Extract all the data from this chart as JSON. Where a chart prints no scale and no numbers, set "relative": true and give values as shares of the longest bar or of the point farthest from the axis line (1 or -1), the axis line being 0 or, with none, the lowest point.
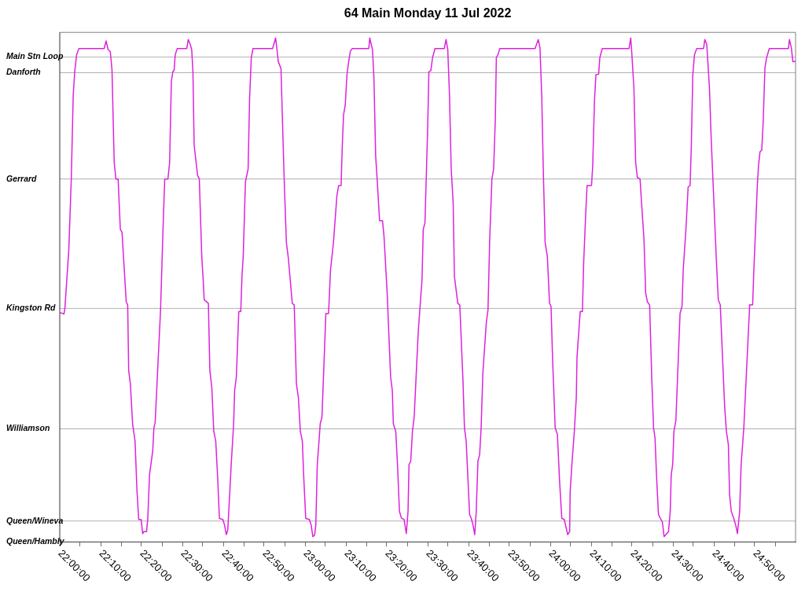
{
  "chart_data": {
    "type": "line",
    "title": "64 Main Monday 11 Jul 2022",
    "relative": true,
    "x": [
      22.0,
      22.017,
      22.021,
      22.037,
      22.047,
      22.055,
      22.061,
      22.069,
      22.078,
      22.181,
      22.189,
      22.197,
      22.206,
      22.213,
      22.222,
      22.229,
      22.238,
      22.247,
      22.254,
      22.271,
      22.277,
      22.281,
      22.288,
      22.297,
      22.307,
      22.315,
      22.322,
      22.332,
      22.338,
      22.343,
      22.354,
      22.359,
      22.366,
      22.379,
      22.384,
      22.389,
      22.411,
      22.421,
      22.428,
      22.441,
      22.448,
      22.455,
      22.461,
      22.466,
      22.471,
      22.479,
      22.518,
      22.524,
      22.532,
      22.538,
      22.543,
      22.548,
      22.562,
      22.569,
      22.579,
      22.584,
      22.589,
      22.606,
      22.612,
      22.62,
      22.628,
      22.636,
      22.644,
      22.651,
      22.665,
      22.672,
      22.679,
      22.685,
      22.692,
      22.699,
      22.709,
      22.713,
      22.72,
      22.73,
      22.738,
      22.743,
      22.748,
      22.757,
      22.768,
      22.774,
      22.781,
      22.788,
      22.868,
      22.88,
      22.885,
      22.891,
      22.902,
      22.915,
      22.924,
      22.932,
      22.948,
      22.956,
      22.965,
      22.973,
      22.981,
      22.989,
      22.995,
      23.003,
      23.018,
      23.025,
      23.032,
      23.039,
      23.044,
      23.05,
      23.055,
      23.062,
      23.069,
      23.085,
      23.096,
      23.104,
      23.116,
      23.13,
      23.137,
      23.147,
      23.152,
      23.157,
      23.164,
      23.171,
      23.178,
      23.185,
      23.193,
      23.26,
      23.264,
      23.27,
      23.275,
      23.281,
      23.288,
      23.294,
      23.304,
      23.316,
      23.322,
      23.335,
      23.349,
      23.356,
      23.36,
      23.37,
      23.377,
      23.385,
      23.393,
      23.404,
      23.413,
      23.42,
      23.424,
      23.431,
      23.438,
      23.445,
      23.462,
      23.47,
      23.477,
      23.482,
      23.489,
      23.5,
      23.505,
      23.513,
      23.52,
      23.53,
      23.568,
      23.575,
      23.582,
      23.589,
      23.596,
      23.604,
      23.609,
      23.623,
      23.631,
      23.644,
      23.65,
      23.657,
      23.671,
      23.678,
      23.685,
      23.692,
      23.698,
      23.705,
      23.712,
      23.718,
      23.725,
      23.739,
      23.746,
      23.753,
      23.762,
      23.769,
      23.776,
      23.78,
      23.787,
      23.794,
      23.938,
      23.951,
      23.958,
      23.965,
      23.972,
      23.979,
      23.988,
      23.997,
      24.003,
      24.01,
      24.02,
      24.029,
      24.038,
      24.047,
      24.057,
      24.071,
      24.079,
      24.081,
      24.088,
      24.098,
      24.106,
      24.109,
      24.122,
      24.131,
      24.136,
      24.144,
      24.15,
      24.168,
      24.173,
      24.18,
      24.186,
      24.197,
      24.202,
      24.212,
      24.321,
      24.328,
      24.331,
      24.341,
      24.348,
      24.355,
      24.366,
      24.372,
      24.382,
      24.389,
      24.396,
      24.405,
      24.414,
      24.421,
      24.427,
      24.433,
      24.441,
      24.448,
      24.457,
      24.464,
      24.482,
      24.489,
      24.493,
      24.499,
      24.504,
      24.512,
      24.529,
      24.537,
      24.542,
      24.553,
      24.562,
      24.57,
      24.575,
      24.581,
      24.588,
      24.597,
      24.625,
      24.63,
      24.638,
      24.644,
      24.649,
      24.656,
      24.663,
      24.677,
      24.685,
      24.693,
      24.711,
      24.718,
      24.726,
      24.731,
      24.738,
      24.748,
      24.756,
      24.763,
      24.772,
      24.778,
      24.783,
      24.789,
      24.813,
      24.825,
      24.83,
      24.838,
      24.844,
      24.849,
      24.855,
      24.862,
      24.868,
      24.875,
      24.882,
      24.893,
      24.971,
      24.975,
      24.983,
      24.989,
      25.0
    ],
    "values": [
      0.455,
      0.452,
      0.463,
      0.58,
      0.72,
      0.887,
      0.933,
      0.967,
      0.979,
      0.979,
      0.994,
      0.977,
      0.973,
      0.937,
      0.753,
      0.72,
      0.72,
      0.62,
      0.614,
      0.476,
      0.47,
      0.34,
      0.313,
      0.234,
      0.2,
      0.1,
      0.044,
      0.044,
      0.016,
      0.02,
      0.02,
      0.047,
      0.133,
      0.18,
      0.226,
      0.237,
      0.46,
      0.62,
      0.72,
      0.72,
      0.753,
      0.913,
      0.933,
      0.935,
      0.967,
      0.979,
      0.979,
      0.997,
      0.987,
      0.977,
      0.933,
      0.787,
      0.727,
      0.72,
      0.566,
      0.527,
      0.48,
      0.473,
      0.34,
      0.306,
      0.219,
      0.2,
      0.126,
      0.046,
      0.044,
      0.033,
      0.014,
      0.023,
      0.086,
      0.153,
      0.234,
      0.3,
      0.327,
      0.457,
      0.457,
      0.527,
      0.566,
      0.714,
      0.74,
      0.88,
      0.961,
      0.979,
      0.979,
      1,
      0.98,
      0.953,
      0.939,
      0.72,
      0.594,
      0.563,
      0.473,
      0.47,
      0.313,
      0.286,
      0.219,
      0.2,
      0.126,
      0.046,
      0.044,
      0.033,
      0.01,
      0.013,
      0.033,
      0.153,
      0.186,
      0.234,
      0.247,
      0.453,
      0.453,
      0.54,
      0.594,
      0.687,
      0.707,
      0.707,
      0.787,
      0.847,
      0.867,
      0.927,
      0.953,
      0.974,
      0.979,
      0.979,
      1,
      0.987,
      0.977,
      0.92,
      0.766,
      0.72,
      0.637,
      0.637,
      0.607,
      0.493,
      0.327,
      0.3,
      0.234,
      0.219,
      0.153,
      0.06,
      0.047,
      0.044,
      0.016,
      0.06,
      0.153,
      0.16,
      0.219,
      0.247,
      0.42,
      0.473,
      0.52,
      0.62,
      0.633,
      0.82,
      0.933,
      0.935,
      0.961,
      0.979,
      0.979,
      0.997,
      0.977,
      0.887,
      0.74,
      0.673,
      0.527,
      0.473,
      0.47,
      0.32,
      0.226,
      0.2,
      0.054,
      0.046,
      0.033,
      0.014,
      0.06,
      0.16,
      0.173,
      0.226,
      0.334,
      0.434,
      0.46,
      0.6,
      0.72,
      0.74,
      0.84,
      0.961,
      0.967,
      0.979,
      0.979,
      0.997,
      0.98,
      0.887,
      0.727,
      0.594,
      0.566,
      0.473,
      0.467,
      0.353,
      0.226,
      0.213,
      0.119,
      0.046,
      0.044,
      0.014,
      0.02,
      0.1,
      0.153,
      0.219,
      0.286,
      0.367,
      0.457,
      0.457,
      0.553,
      0.647,
      0.707,
      0.707,
      0.747,
      0.874,
      0.927,
      0.928,
      0.961,
      0.979,
      0.979,
      1,
      0.98,
      0.9,
      0.753,
      0.723,
      0.72,
      0.673,
      0.6,
      0.493,
      0.476,
      0.47,
      0.32,
      0.226,
      0.206,
      0.133,
      0.054,
      0.047,
      0.039,
      0.01,
      0.02,
      0.06,
      0.133,
      0.153,
      0.219,
      0.24,
      0.453,
      0.467,
      0.54,
      0.62,
      0.704,
      0.707,
      0.787,
      0.927,
      0.967,
      0.979,
      0.979,
      0.997,
      0.987,
      0.94,
      0.9,
      0.8,
      0.72,
      0.56,
      0.48,
      0.47,
      0.267,
      0.219,
      0.193,
      0.093,
      0.06,
      0.046,
      0.033,
      0.016,
      0.06,
      0.153,
      0.186,
      0.226,
      0.47,
      0.47,
      0.54,
      0.633,
      0.707,
      0.747,
      0.774,
      0.777,
      0.833,
      0.94,
      0.961,
      0.979,
      0.979,
      0.997,
      0.98,
      0.953,
      0.953
    ],
    "color": "#dd22dd",
    "xlim": [
      22,
      25
    ],
    "xticks": [
      {
        "value": 22,
        "label": "22:00:00"
      },
      {
        "value": 22.0833,
        "label": null
      },
      {
        "value": 22.1667,
        "label": "22:10:00"
      },
      {
        "value": 22.25,
        "label": null
      },
      {
        "value": 22.3333,
        "label": "22:20:00"
      },
      {
        "value": 22.4167,
        "label": null
      },
      {
        "value": 22.5,
        "label": "22:30:00"
      },
      {
        "value": 22.5833,
        "label": null
      },
      {
        "value": 22.6667,
        "label": "22:40:00"
      },
      {
        "value": 22.75,
        "label": null
      },
      {
        "value": 22.8333,
        "label": "22:50:00"
      },
      {
        "value": 22.9167,
        "label": null
      },
      {
        "value": 23,
        "label": "23:00:00"
      },
      {
        "value": 23.0833,
        "label": null
      },
      {
        "value": 23.1667,
        "label": "23:10:00"
      },
      {
        "value": 23.25,
        "label": null
      },
      {
        "value": 23.3333,
        "label": "23:20:00"
      },
      {
        "value": 23.4167,
        "label": null
      },
      {
        "value": 23.5,
        "label": "23:30:00"
      },
      {
        "value": 23.5833,
        "label": null
      },
      {
        "value": 23.6667,
        "label": "23:40:00"
      },
      {
        "value": 23.75,
        "label": null
      },
      {
        "value": 23.8333,
        "label": "23:50:00"
      },
      {
        "value": 23.9167,
        "label": null
      },
      {
        "value": 24,
        "label": "24:00:00"
      },
      {
        "value": 24.0833,
        "label": null
      },
      {
        "value": 24.1667,
        "label": "24:10:00"
      },
      {
        "value": 24.25,
        "label": null
      },
      {
        "value": 24.3333,
        "label": "24:20:00"
      },
      {
        "value": 24.4167,
        "label": null
      },
      {
        "value": 24.5,
        "label": "24:30:00"
      },
      {
        "value": 24.5833,
        "label": null
      },
      {
        "value": 24.6667,
        "label": "24:40:00"
      },
      {
        "value": 24.75,
        "label": null
      },
      {
        "value": 24.8333,
        "label": "24:50:00"
      },
      {
        "value": 24.9167,
        "label": null
      }
    ],
    "ref_lines": [
      {
        "axis": "y",
        "value": 0,
        "label": "Queen/Hambly"
      },
      {
        "axis": "y",
        "value": 0.041,
        "label": "Queen/Wineva"
      },
      {
        "axis": "y",
        "value": 0.224,
        "label": "Williamson"
      },
      {
        "axis": "y",
        "value": 0.463,
        "label": "Kingston Rd"
      },
      {
        "axis": "y",
        "value": 0.72,
        "label": "Gerrard"
      },
      {
        "axis": "y",
        "value": 0.931,
        "label": "Danforth"
      },
      {
        "axis": "y",
        "value": 0.962,
        "label": "Main Stn Loop"
      }
    ]
  }
}
